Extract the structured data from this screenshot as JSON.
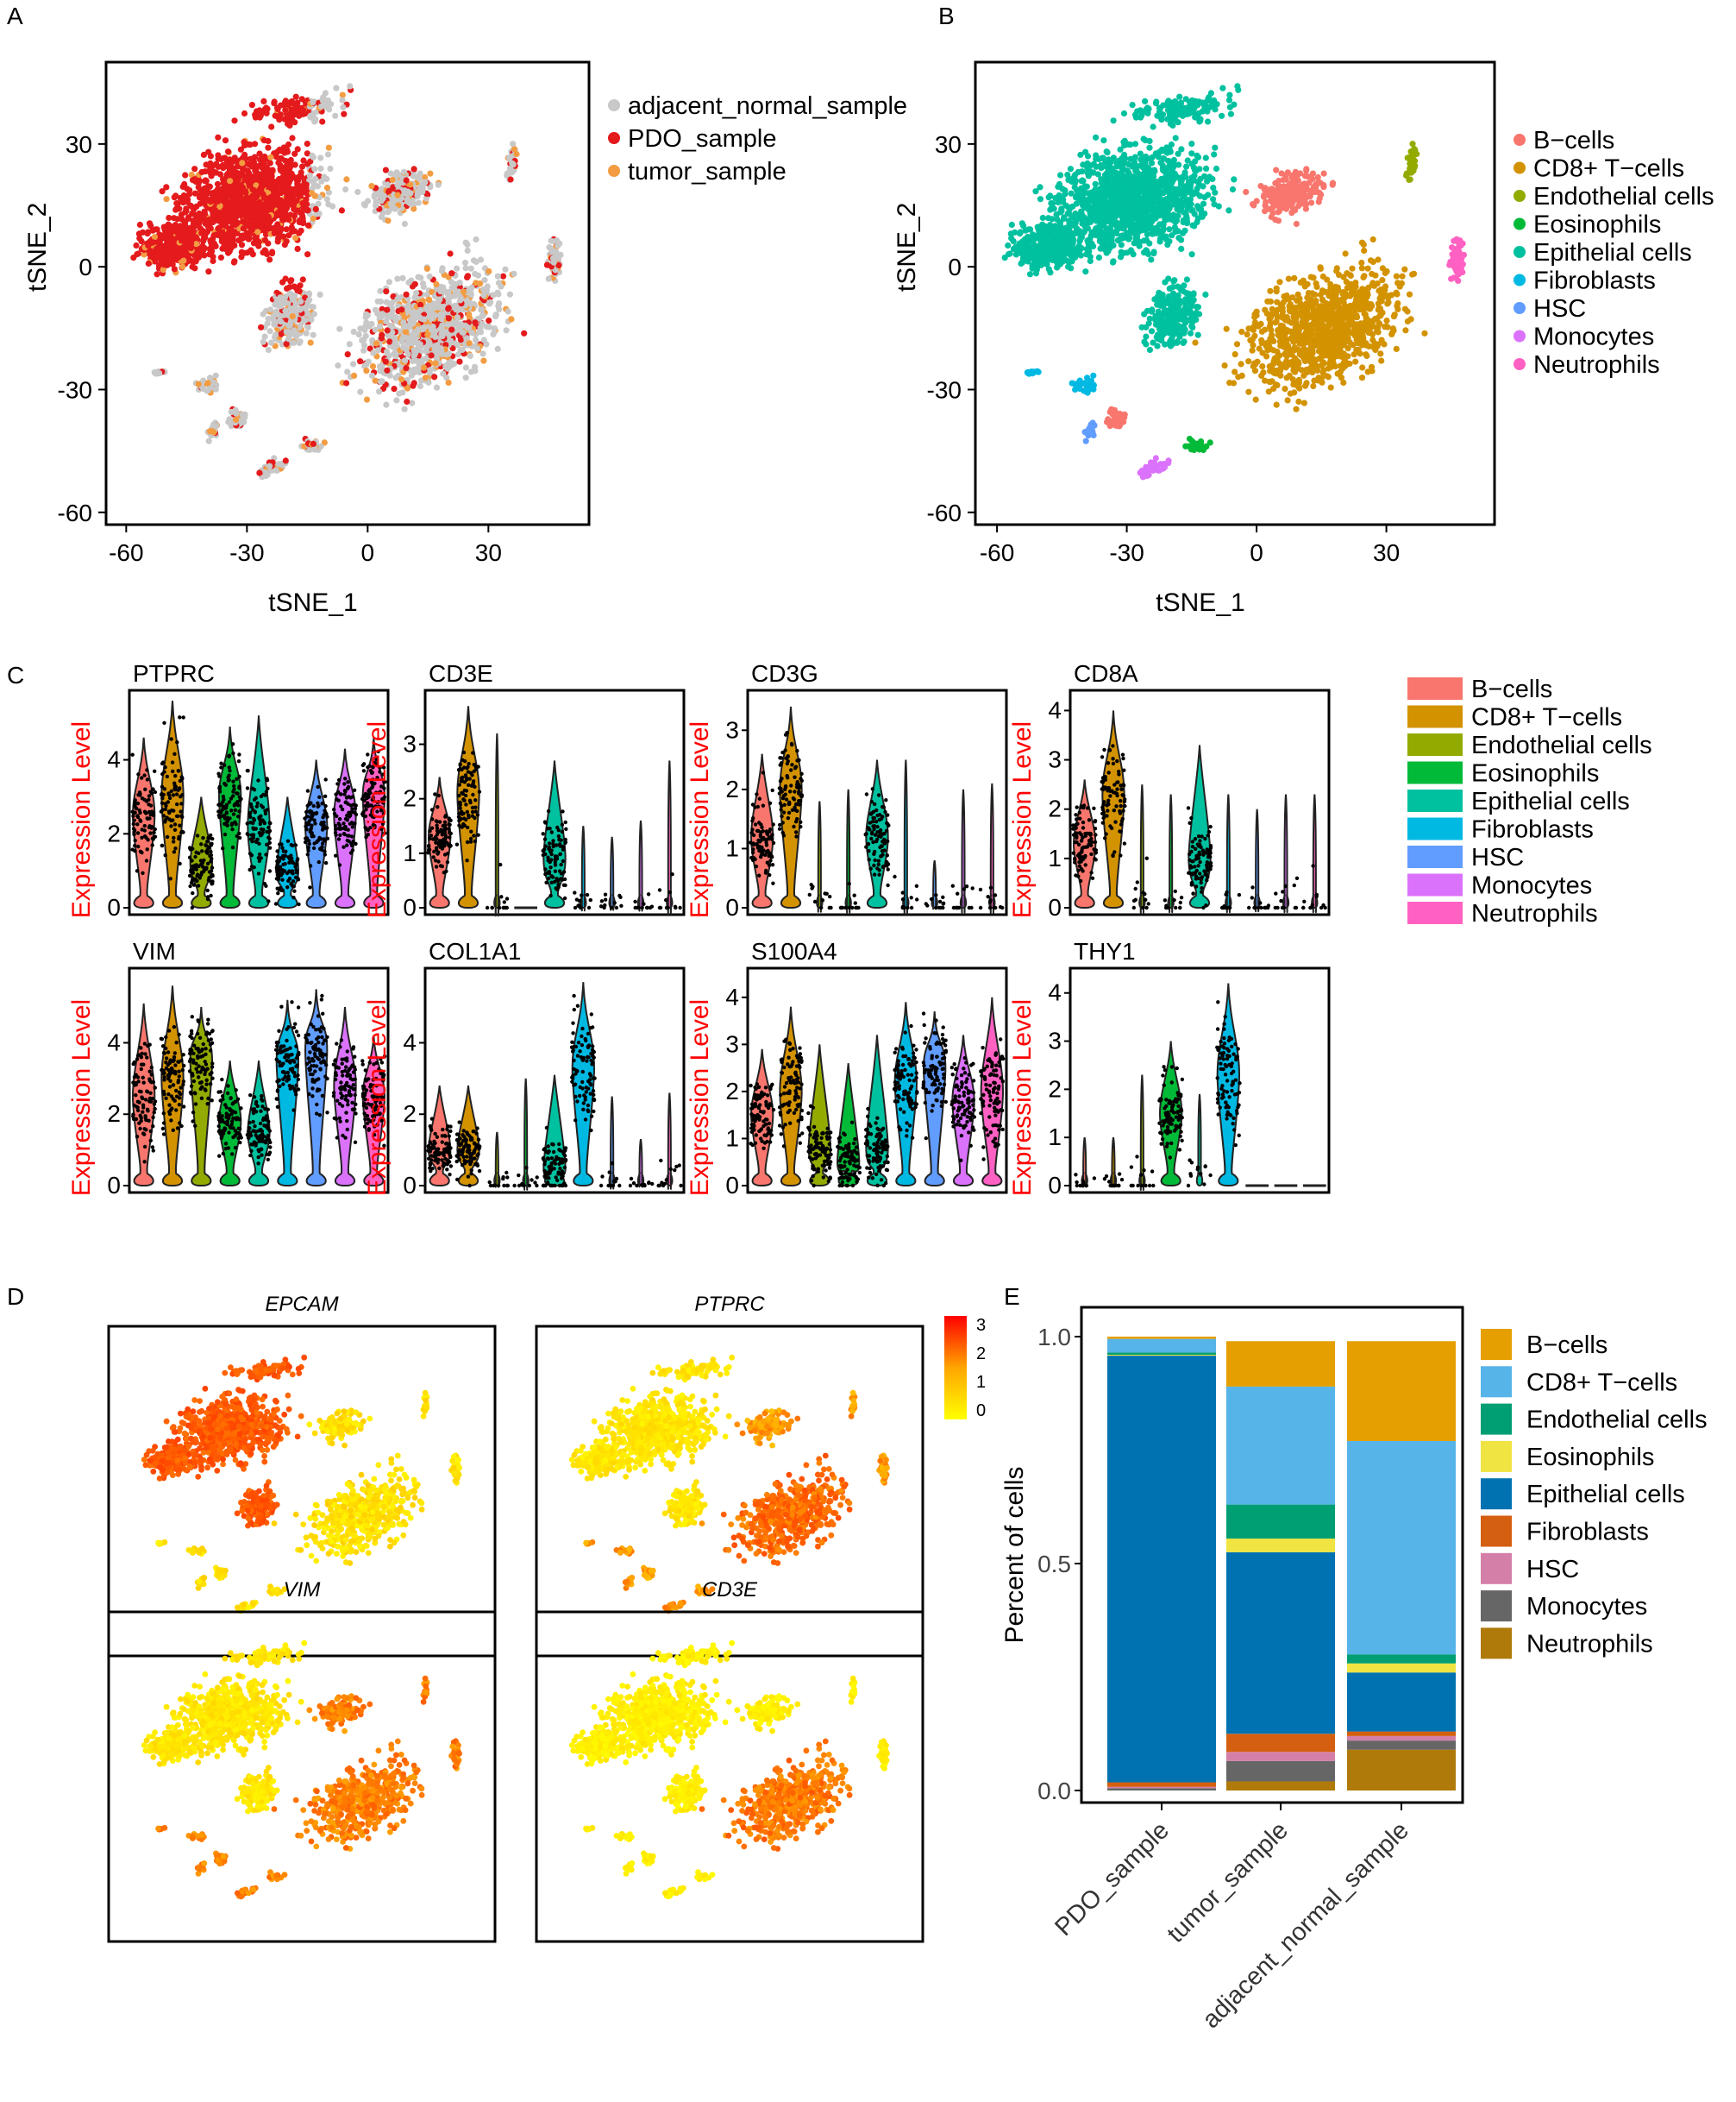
{
  "colors": {
    "B-cells": "#F8766D",
    "CD8+ T-cells": "#D39200",
    "Endothelial cells": "#93AA00",
    "Eosinophils": "#00BA38",
    "Epithelial cells": "#00C19F",
    "Fibroblasts": "#00B9E3",
    "HSC": "#619CFF",
    "Monocytes": "#DB72FB",
    "Neutrophils": "#FF61C3",
    "adjacent_normal_sample": "#C8C8C8",
    "PDO_sample": "#E41A1C",
    "tumor_sample": "#F39C42"
  },
  "chart_data": [
    {
      "panel": "A",
      "type": "scatter",
      "xlabel": "tSNE_1",
      "ylabel": "tSNE_2",
      "xticks": [
        -60,
        -30,
        0,
        30
      ],
      "yticks": [
        30,
        0,
        -30,
        -60
      ],
      "xlim": [
        -65,
        55
      ],
      "ylim": [
        -63,
        50
      ],
      "legend": [
        "adjacent_normal_sample",
        "PDO_sample",
        "tumor_sample"
      ]
    },
    {
      "panel": "B",
      "type": "scatter",
      "xlabel": "tSNE_1",
      "ylabel": "tSNE_2",
      "xticks": [
        -60,
        -30,
        0,
        30
      ],
      "yticks": [
        30,
        0,
        -30,
        -60
      ],
      "xlim": [
        -65,
        55
      ],
      "ylim": [
        -63,
        50
      ],
      "legend": [
        "B−cells",
        "CD8+ T−cells",
        "Endothelial cells",
        "Eosinophils",
        "Epithelial cells",
        "Fibroblasts",
        "HSC",
        "Monocytes",
        "Neutrophils"
      ]
    },
    {
      "panel": "C",
      "type": "violin",
      "ylabel": "Expression Level",
      "legend": [
        "B−cells",
        "CD8+ T−cells",
        "Endothelial cells",
        "Eosinophils",
        "Epithelial cells",
        "Fibroblasts",
        "HSC",
        "Monocytes",
        "Neutrophils"
      ],
      "genes": [
        {
          "name": "PTPRC",
          "yticks": [
            0,
            2,
            4
          ],
          "ymax": 5.6,
          "max": [
            4.6,
            5.6,
            3.0,
            4.9,
            5.2,
            3.0,
            4.0,
            4.3,
            4.6
          ],
          "median": [
            2.5,
            3.0,
            1.2,
            3.0,
            2.2,
            1.0,
            2.2,
            2.5,
            3.0
          ]
        },
        {
          "name": "CD3E",
          "yticks": [
            0,
            1,
            2,
            3
          ],
          "ymax": 3.8,
          "max": [
            2.4,
            3.7,
            3.2,
            0,
            2.7,
            1.5,
            1.3,
            1.6,
            2.7
          ],
          "median": [
            1.3,
            2.1,
            0,
            0,
            0.9,
            0,
            0,
            0,
            0
          ]
        },
        {
          "name": "CD3G",
          "yticks": [
            0,
            1,
            2,
            3
          ],
          "ymax": 3.5,
          "max": [
            2.6,
            3.4,
            1.8,
            2.0,
            2.5,
            2.5,
            0.8,
            2.0,
            2.1
          ],
          "median": [
            1.2,
            2.0,
            0,
            0,
            1.2,
            0,
            0,
            0,
            0
          ]
        },
        {
          "name": "CD8A",
          "yticks": [
            0,
            1,
            2,
            3,
            4
          ],
          "ymax": 4.2,
          "max": [
            2.6,
            4.0,
            2.5,
            2.3,
            3.3,
            2.3,
            2.0,
            2.3,
            2.3
          ],
          "median": [
            1.3,
            2.3,
            0,
            0,
            1.0,
            0,
            0,
            0,
            0
          ]
        },
        {
          "name": "VIM",
          "yticks": [
            0,
            2,
            4
          ],
          "ymax": 5.8,
          "max": [
            5.1,
            5.6,
            5.0,
            3.5,
            3.5,
            5.2,
            5.5,
            5.0,
            4.2
          ],
          "median": [
            2.5,
            3.0,
            3.5,
            1.8,
            1.5,
            3.5,
            3.8,
            2.8,
            2.5
          ]
        },
        {
          "name": "COL1A1",
          "yticks": [
            0,
            2,
            4
          ],
          "ymax": 5.8,
          "max": [
            2.8,
            2.8,
            1.5,
            3.0,
            3.1,
            5.7,
            2.5,
            1.3,
            2.6
          ],
          "median": [
            1.0,
            1.0,
            0,
            0,
            0.5,
            3.3,
            0,
            0,
            0
          ]
        },
        {
          "name": "S100A4",
          "yticks": [
            0,
            1,
            2,
            3,
            4
          ],
          "ymax": 4.4,
          "max": [
            2.9,
            3.8,
            3.0,
            2.6,
            3.2,
            3.9,
            3.7,
            3.2,
            4.0
          ],
          "median": [
            1.5,
            2.0,
            0.8,
            0.5,
            0.8,
            2.2,
            2.5,
            1.8,
            2.0
          ]
        },
        {
          "name": "THY1",
          "yticks": [
            0,
            1,
            2,
            3,
            4
          ],
          "ymax": 4.3,
          "max": [
            1.0,
            1.0,
            2.3,
            3.0,
            1.9,
            4.2,
            0,
            0,
            0
          ],
          "median": [
            0,
            0,
            0,
            1.5,
            0.3,
            2.3,
            0,
            0,
            0
          ]
        }
      ]
    },
    {
      "panel": "D",
      "type": "heatmap",
      "genes": [
        "EPCAM",
        "PTPRC",
        "VIM",
        "CD3E"
      ],
      "colorbar": {
        "ticks": [
          3,
          2,
          1,
          0
        ],
        "low": "#FFFF00",
        "high": "#FF0000"
      }
    },
    {
      "panel": "E",
      "type": "bar",
      "stacked": true,
      "ylabel": "Percent of cells",
      "yticks": [
        "0.0",
        "0.5",
        "1.0"
      ],
      "ylim": [
        0,
        1.05
      ],
      "categories": [
        "PDO_sample",
        "tumor_sample",
        "adjacent_normal_sample"
      ],
      "series": [
        {
          "name": "Neutrophils",
          "color": "#B07A0A",
          "values": [
            0.0,
            0.02,
            0.09
          ]
        },
        {
          "name": "Monocytes",
          "color": "#666666",
          "values": [
            0.005,
            0.045,
            0.02
          ]
        },
        {
          "name": "HSC",
          "color": "#D47FA8",
          "values": [
            0.003,
            0.02,
            0.01
          ]
        },
        {
          "name": "Fibroblasts",
          "color": "#D45F10",
          "values": [
            0.01,
            0.04,
            0.01
          ]
        },
        {
          "name": "Epithelial cells",
          "color": "#0072B2",
          "values": [
            0.94,
            0.4,
            0.13
          ]
        },
        {
          "name": "Eosinophils",
          "color": "#F0E442",
          "values": [
            0.002,
            0.03,
            0.02
          ]
        },
        {
          "name": "Endothelial cells",
          "color": "#009E73",
          "values": [
            0.005,
            0.075,
            0.02
          ]
        },
        {
          "name": "CD8+ T−cells",
          "color": "#56B4E9",
          "values": [
            0.03,
            0.26,
            0.47
          ]
        },
        {
          "name": "B−cells",
          "color": "#E69F00",
          "values": [
            0.005,
            0.1,
            0.22
          ]
        }
      ],
      "legend": [
        "B−cells",
        "CD8+ T−cells",
        "Endothelial cells",
        "Eosinophils",
        "Epithelial cells",
        "Fibroblasts",
        "HSC",
        "Monocytes",
        "Neutrophils"
      ]
    }
  ]
}
